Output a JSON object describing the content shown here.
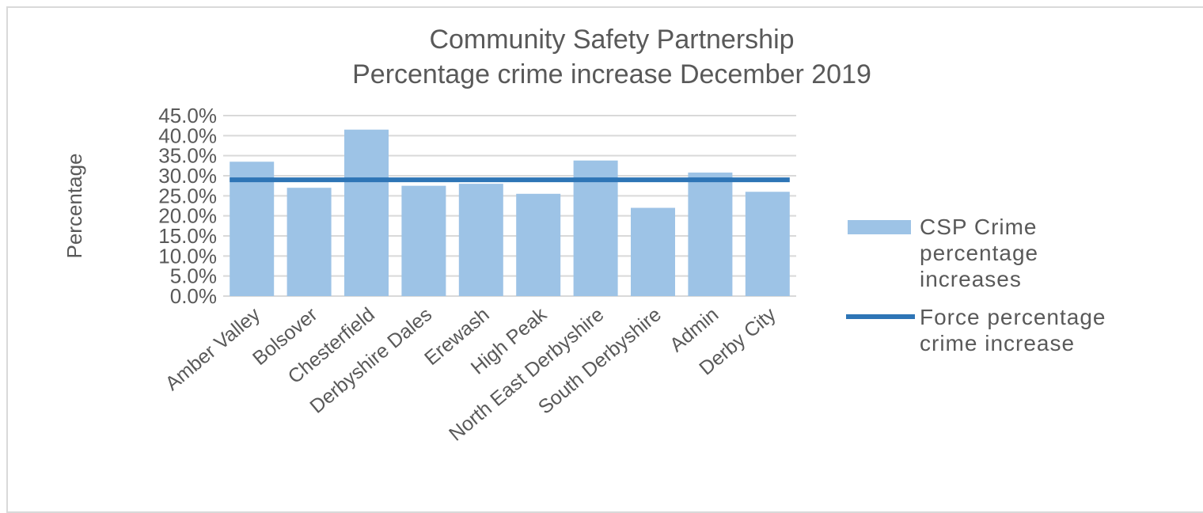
{
  "chart_data": {
    "type": "bar",
    "title": [
      "Community Safety Partnership",
      "Percentage crime increase December 2019"
    ],
    "ylabel": "Percentage",
    "xlabel": "",
    "ylim": [
      0,
      45
    ],
    "yticks": [
      "0.0%",
      "5.0%",
      "10.0%",
      "15.0%",
      "20.0%",
      "25.0%",
      "30.0%",
      "35.0%",
      "40.0%",
      "45.0%"
    ],
    "categories": [
      "Amber Valley",
      "Bolsover",
      "Chesterfield",
      "Derbyshire Dales",
      "Erewash",
      "High Peak",
      "North East Derbyshire",
      "South Derbyshire",
      "Admin",
      "Derby City"
    ],
    "series": [
      {
        "name": "CSP Crime percentage increases",
        "type": "bar",
        "values": [
          33.5,
          27.0,
          41.5,
          27.5,
          28.0,
          25.5,
          33.8,
          22.0,
          30.8,
          26.0
        ]
      },
      {
        "name": "Force percentage crime increase",
        "type": "line",
        "values": [
          29.0,
          29.0,
          29.0,
          29.0,
          29.0,
          29.0,
          29.0,
          29.0,
          29.0,
          29.0
        ]
      }
    ],
    "legend": {
      "position": "right",
      "entries": [
        {
          "lines": [
            "CSP Crime",
            "percentage",
            "increases"
          ],
          "marker": "bar"
        },
        {
          "lines": [
            "Force percentage",
            "crime increase"
          ],
          "marker": "line"
        }
      ]
    },
    "colors": {
      "bar": "#9dc3e6",
      "line": "#2e75b6",
      "grid": "#d9d9d9",
      "text": "#595959"
    },
    "grid": true
  }
}
